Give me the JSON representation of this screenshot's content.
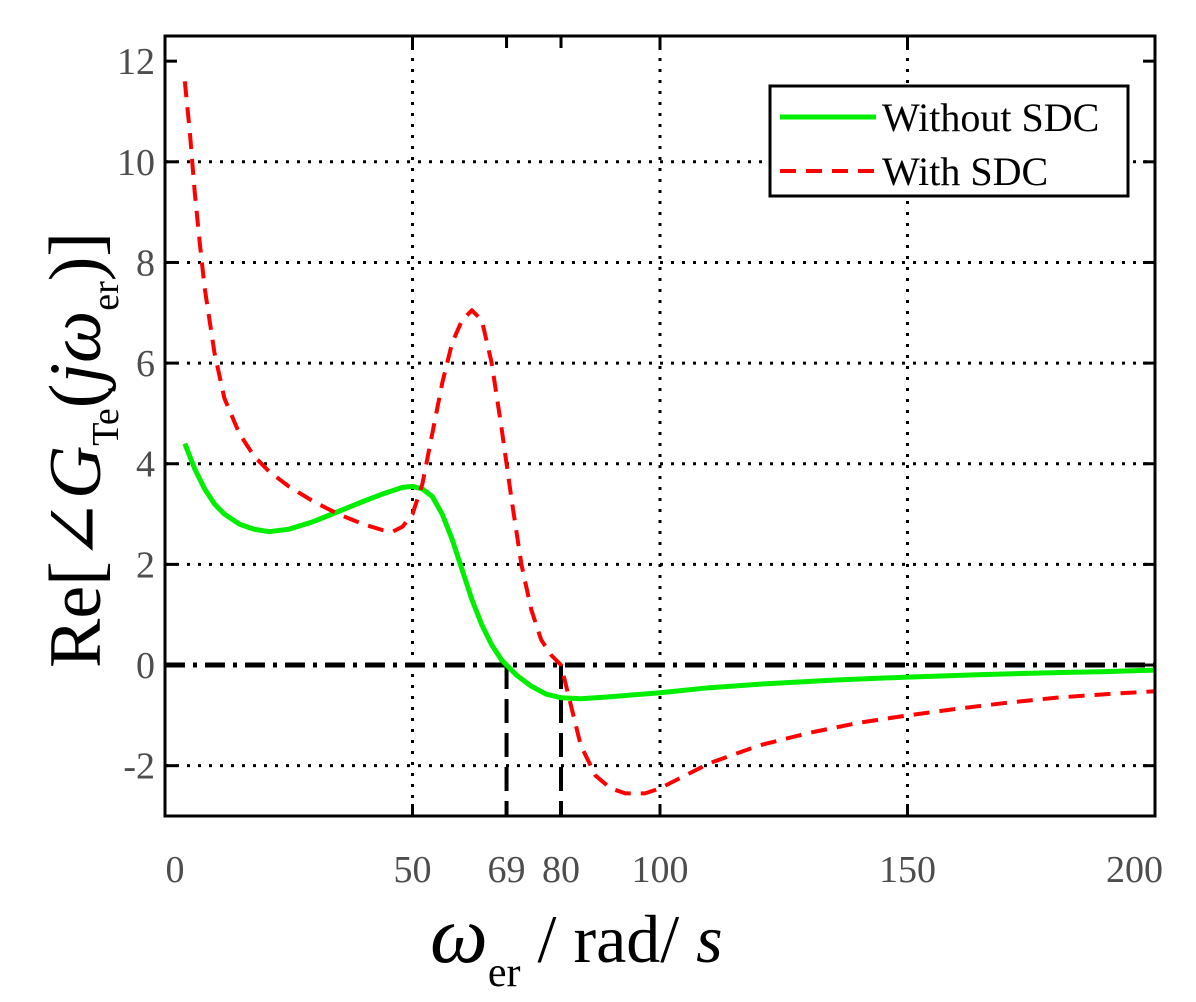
{
  "chart_data": {
    "type": "line",
    "title": "",
    "xlabel": {
      "symbol": "ω",
      "subscript": "er",
      "rest": " / rad/ ",
      "unit_var": "s"
    },
    "ylabel": {
      "prefix": "Re[",
      "angle": "∠",
      "G": "G",
      "subscript": "Te",
      "open": "(",
      "j": "j",
      "omega": "ω",
      "omega_sub": "er",
      "close": ")]"
    },
    "xlim": [
      0,
      200
    ],
    "ylim": [
      -3,
      12.5
    ],
    "x_ticks": [
      0,
      50,
      69,
      80,
      100,
      150,
      200
    ],
    "x_tick_labels": [
      "0",
      "50",
      "69",
      "80",
      "100",
      "150",
      "200"
    ],
    "y_ticks": [
      -2,
      0,
      2,
      4,
      6,
      8,
      10,
      12
    ],
    "y_tick_labels": [
      "-2",
      "0",
      "2",
      "4",
      "6",
      "8",
      "10",
      "12"
    ],
    "grid_x": [
      50,
      100,
      150
    ],
    "grid_y": [
      -2,
      2,
      4,
      6,
      8,
      10
    ],
    "zero_line": 0,
    "markers": [
      69,
      80
    ],
    "legend_position": "top-right",
    "series": [
      {
        "name": "Without SDC",
        "color": "#00ee00",
        "style": "solid",
        "points": [
          [
            4,
            4.4
          ],
          [
            6,
            3.9
          ],
          [
            8,
            3.5
          ],
          [
            10,
            3.2
          ],
          [
            12,
            3.0
          ],
          [
            15,
            2.8
          ],
          [
            18,
            2.7
          ],
          [
            21,
            2.65
          ],
          [
            25,
            2.7
          ],
          [
            30,
            2.85
          ],
          [
            35,
            3.05
          ],
          [
            40,
            3.25
          ],
          [
            44,
            3.4
          ],
          [
            48,
            3.53
          ],
          [
            50,
            3.55
          ],
          [
            52,
            3.5
          ],
          [
            54,
            3.35
          ],
          [
            56,
            3.0
          ],
          [
            58,
            2.5
          ],
          [
            60,
            1.9
          ],
          [
            62,
            1.3
          ],
          [
            64,
            0.8
          ],
          [
            66,
            0.4
          ],
          [
            68,
            0.1
          ],
          [
            69,
            0.0
          ],
          [
            71,
            -0.2
          ],
          [
            74,
            -0.42
          ],
          [
            77,
            -0.58
          ],
          [
            80,
            -0.65
          ],
          [
            84,
            -0.67
          ],
          [
            90,
            -0.63
          ],
          [
            100,
            -0.55
          ],
          [
            110,
            -0.45
          ],
          [
            120,
            -0.38
          ],
          [
            135,
            -0.3
          ],
          [
            150,
            -0.24
          ],
          [
            165,
            -0.19
          ],
          [
            180,
            -0.15
          ],
          [
            190,
            -0.13
          ],
          [
            200,
            -0.1
          ]
        ]
      },
      {
        "name": "With SDC",
        "color": "#ff0000",
        "style": "dashed",
        "points": [
          [
            4,
            11.6
          ],
          [
            5,
            10.6
          ],
          [
            6,
            9.4
          ],
          [
            7,
            8.4
          ],
          [
            8,
            7.5
          ],
          [
            10,
            6.2
          ],
          [
            12,
            5.3
          ],
          [
            15,
            4.6
          ],
          [
            18,
            4.15
          ],
          [
            21,
            3.85
          ],
          [
            25,
            3.55
          ],
          [
            30,
            3.25
          ],
          [
            35,
            3.0
          ],
          [
            40,
            2.8
          ],
          [
            44,
            2.68
          ],
          [
            46,
            2.65
          ],
          [
            48,
            2.75
          ],
          [
            50,
            3.0
          ],
          [
            52,
            3.6
          ],
          [
            54,
            4.6
          ],
          [
            56,
            5.6
          ],
          [
            58,
            6.4
          ],
          [
            60,
            6.85
          ],
          [
            62,
            7.05
          ],
          [
            64,
            6.85
          ],
          [
            66,
            6.0
          ],
          [
            68,
            4.7
          ],
          [
            70,
            3.3
          ],
          [
            72,
            2.0
          ],
          [
            74,
            1.1
          ],
          [
            76,
            0.5
          ],
          [
            78,
            0.2
          ],
          [
            80,
            0.0
          ],
          [
            82,
            -0.8
          ],
          [
            84,
            -1.6
          ],
          [
            87,
            -2.2
          ],
          [
            90,
            -2.45
          ],
          [
            93,
            -2.55
          ],
          [
            97,
            -2.55
          ],
          [
            100,
            -2.45
          ],
          [
            105,
            -2.2
          ],
          [
            110,
            -1.95
          ],
          [
            120,
            -1.6
          ],
          [
            130,
            -1.35
          ],
          [
            140,
            -1.15
          ],
          [
            150,
            -1.0
          ],
          [
            160,
            -0.87
          ],
          [
            170,
            -0.75
          ],
          [
            180,
            -0.65
          ],
          [
            190,
            -0.58
          ],
          [
            200,
            -0.52
          ]
        ]
      }
    ]
  }
}
